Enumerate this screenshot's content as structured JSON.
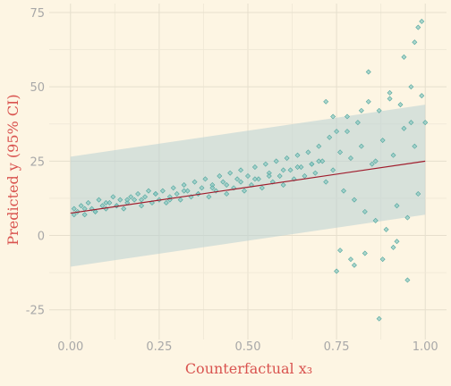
{
  "chart_data": {
    "type": "scatter",
    "title": "",
    "xlabel": "Counterfactual  x₃",
    "ylabel": "Predicted y (95% CI)",
    "xlim": [
      -0.06,
      1.06
    ],
    "ylim": [
      -35,
      78
    ],
    "x_ticks": [
      0.0,
      0.25,
      0.5,
      0.75,
      1.0
    ],
    "x_tick_labels": [
      "0.00",
      "0.25",
      "0.50",
      "0.75",
      "1.00"
    ],
    "y_ticks": [
      -25,
      0,
      25,
      50,
      75
    ],
    "y_tick_labels": [
      "-25",
      "0",
      "25",
      "50",
      "75"
    ],
    "grid": true,
    "legend": "none",
    "fit_line": {
      "x": [
        0.0,
        1.0
      ],
      "y": [
        7.5,
        25.0
      ]
    },
    "ci_band": {
      "x": [
        0.0,
        1.0
      ],
      "lower": [
        -10.5,
        7.0
      ],
      "upper": [
        26.5,
        44.0
      ]
    },
    "points": {
      "x": [
        0.01,
        0.02,
        0.03,
        0.04,
        0.05,
        0.06,
        0.07,
        0.08,
        0.09,
        0.1,
        0.11,
        0.12,
        0.13,
        0.14,
        0.15,
        0.16,
        0.17,
        0.18,
        0.19,
        0.2,
        0.21,
        0.22,
        0.23,
        0.24,
        0.25,
        0.26,
        0.27,
        0.28,
        0.29,
        0.3,
        0.31,
        0.32,
        0.33,
        0.34,
        0.35,
        0.36,
        0.37,
        0.38,
        0.39,
        0.4,
        0.41,
        0.42,
        0.43,
        0.44,
        0.45,
        0.46,
        0.47,
        0.48,
        0.49,
        0.5,
        0.51,
        0.52,
        0.53,
        0.54,
        0.55,
        0.56,
        0.57,
        0.58,
        0.59,
        0.6,
        0.61,
        0.62,
        0.63,
        0.64,
        0.65,
        0.66,
        0.67,
        0.68,
        0.69,
        0.7,
        0.71,
        0.72,
        0.73,
        0.74,
        0.75,
        0.76,
        0.77,
        0.78,
        0.79,
        0.8,
        0.81,
        0.82,
        0.83,
        0.84,
        0.85,
        0.86,
        0.87,
        0.88,
        0.89,
        0.9,
        0.91,
        0.92,
        0.93,
        0.94,
        0.95,
        0.96,
        0.97,
        0.98,
        0.99,
        1.0,
        0.72,
        0.74,
        0.76,
        0.78,
        0.8,
        0.82,
        0.84,
        0.86,
        0.88,
        0.9,
        0.92,
        0.94,
        0.96,
        0.98,
        0.75,
        0.79,
        0.83,
        0.87,
        0.91,
        0.95,
        0.97,
        0.99,
        0.01,
        0.04,
        0.07,
        0.1,
        0.13,
        0.16,
        0.2,
        0.24,
        0.28,
        0.32,
        0.36,
        0.4,
        0.44,
        0.48,
        0.52,
        0.56,
        0.6,
        0.64,
        0.68,
        0.7
      ],
      "y": [
        9,
        8,
        10,
        7,
        11,
        9,
        8,
        12,
        10,
        9,
        11,
        13,
        10,
        12,
        9,
        11,
        13,
        12,
        14,
        10,
        13,
        15,
        11,
        14,
        12,
        15,
        11,
        13,
        16,
        14,
        12,
        17,
        15,
        13,
        18,
        14,
        16,
        19,
        13,
        17,
        15,
        20,
        18,
        14,
        21,
        16,
        19,
        22,
        15,
        20,
        17,
        23,
        19,
        16,
        24,
        21,
        18,
        25,
        20,
        17,
        26,
        22,
        19,
        27,
        23,
        20,
        28,
        24,
        21,
        30,
        25,
        18,
        33,
        22,
        35,
        28,
        15,
        40,
        26,
        12,
        38,
        30,
        8,
        45,
        24,
        5,
        42,
        32,
        2,
        48,
        27,
        10,
        44,
        36,
        6,
        50,
        30,
        14,
        47,
        38,
        45,
        40,
        -5,
        35,
        -10,
        42,
        55,
        25,
        -8,
        46,
        -2,
        60,
        38,
        70,
        -12,
        -8,
        -6,
        -28,
        -4,
        -15,
        65,
        72,
        7,
        9,
        8,
        11,
        10,
        12,
        12,
        14,
        12,
        15,
        14,
        16,
        17,
        18,
        19,
        20,
        22,
        23,
        24,
        25
      ]
    }
  }
}
